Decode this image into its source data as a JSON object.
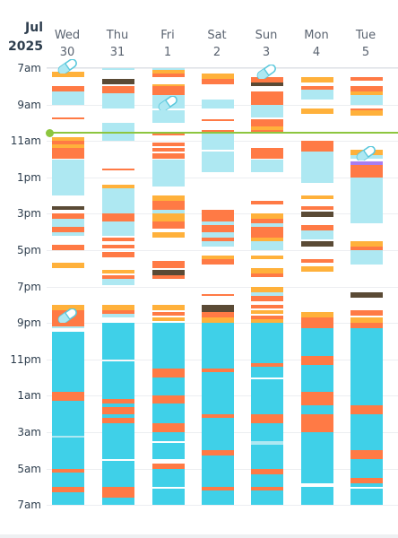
{
  "header": {
    "month": "Jul",
    "year": "2025",
    "days": [
      {
        "weekday": "Wed",
        "date": "30"
      },
      {
        "weekday": "Thu",
        "date": "31"
      },
      {
        "weekday": "Fri",
        "date": "1"
      },
      {
        "weekday": "Sat",
        "date": "2"
      },
      {
        "weekday": "Sun",
        "date": "3"
      },
      {
        "weekday": "Mon",
        "date": "4"
      },
      {
        "weekday": "Tue",
        "date": "5"
      }
    ]
  },
  "time_labels": [
    "7am",
    "9am",
    "11am",
    "1pm",
    "3pm",
    "5pm",
    "7pm",
    "9pm",
    "11pm",
    "1am",
    "3am",
    "5am",
    "7am"
  ],
  "window": {
    "start": "7am",
    "end": "7am next day",
    "hours": 24
  },
  "now_marker": {
    "time": "10:45am",
    "color": "#8dc63f"
  },
  "legend_colors": {
    "deep": "#3fd0e8",
    "light": "#aee8f2",
    "rem": "#ff7a45",
    "awake": "#ffb13b",
    "dark": "#5a4a35",
    "purple": "#a87df0"
  },
  "medication_icon": "capsule-icon",
  "medication_doses": [
    {
      "day": 0,
      "hour": 0.0
    },
    {
      "day": 2,
      "hour": 2.0
    },
    {
      "day": 4,
      "hour": 0.3
    },
    {
      "day": 6,
      "hour": 4.8
    },
    {
      "day": 0,
      "hour": 13.7
    }
  ],
  "columns": [
    [
      [
        "awake",
        0.2,
        0.5
      ],
      [
        "rem",
        1.0,
        1.3
      ],
      [
        "light",
        1.3,
        2.0
      ],
      [
        "rem",
        2.7,
        2.8
      ],
      [
        "awake",
        3.8,
        4.0
      ],
      [
        "rem",
        4.0,
        4.2
      ],
      [
        "awake",
        4.2,
        4.4
      ],
      [
        "rem",
        4.4,
        5.0
      ],
      [
        "light",
        5.0,
        7.0
      ],
      [
        "dark",
        7.6,
        7.8
      ],
      [
        "rem",
        8.0,
        8.3
      ],
      [
        "light",
        8.3,
        8.7
      ],
      [
        "rem",
        8.7,
        9.0
      ],
      [
        "light",
        9.0,
        9.2
      ],
      [
        "rem",
        9.7,
        10.0
      ],
      [
        "awake",
        10.7,
        11.0
      ],
      [
        "awake",
        13.0,
        13.3
      ],
      [
        "rem",
        13.3,
        14.2
      ],
      [
        "light",
        14.2,
        14.3
      ],
      [
        "deep",
        14.5,
        17.8
      ],
      [
        "rem",
        17.8,
        18.3
      ],
      [
        "deep",
        18.3,
        20.2
      ],
      [
        "light",
        20.2,
        20.3
      ],
      [
        "deep",
        20.3,
        22.0
      ],
      [
        "rem",
        22.0,
        22.2
      ],
      [
        "deep",
        22.2,
        23.0
      ],
      [
        "rem",
        23.0,
        23.3
      ],
      [
        "deep",
        23.3,
        24.0
      ]
    ],
    [
      [
        "light",
        0.0,
        0.1
      ],
      [
        "dark",
        0.6,
        0.9
      ],
      [
        "rem",
        1.0,
        1.4
      ],
      [
        "light",
        1.4,
        2.2
      ],
      [
        "light",
        3.0,
        4.0
      ],
      [
        "rem",
        5.5,
        5.6
      ],
      [
        "awake",
        6.4,
        6.6
      ],
      [
        "light",
        6.6,
        7.0
      ],
      [
        "light",
        7.0,
        8.0
      ],
      [
        "rem",
        8.0,
        8.4
      ],
      [
        "light",
        8.4,
        9.2
      ],
      [
        "rem",
        9.3,
        9.5
      ],
      [
        "rem",
        9.7,
        9.9
      ],
      [
        "rem",
        10.1,
        10.4
      ],
      [
        "awake",
        11.1,
        11.3
      ],
      [
        "rem",
        11.4,
        11.6
      ],
      [
        "light",
        11.6,
        11.9
      ],
      [
        "awake",
        13.0,
        13.3
      ],
      [
        "rem",
        13.3,
        13.5
      ],
      [
        "light",
        13.5,
        13.7
      ],
      [
        "deep",
        14.0,
        16.0
      ],
      [
        "deep",
        16.1,
        18.2
      ],
      [
        "rem",
        18.2,
        18.4
      ],
      [
        "deep",
        18.4,
        18.6
      ],
      [
        "rem",
        18.6,
        19.0
      ],
      [
        "deep",
        19.0,
        19.2
      ],
      [
        "rem",
        19.2,
        19.5
      ],
      [
        "deep",
        19.5,
        21.5
      ],
      [
        "deep",
        21.6,
        23.0
      ],
      [
        "rem",
        23.0,
        23.6
      ],
      [
        "deep",
        23.6,
        24.0
      ]
    ],
    [
      [
        "light",
        0.0,
        0.1
      ],
      [
        "awake",
        0.1,
        0.3
      ],
      [
        "rem",
        0.3,
        0.5
      ],
      [
        "awake",
        0.9,
        1.0
      ],
      [
        "rem",
        1.0,
        1.5
      ],
      [
        "light",
        1.5,
        2.2
      ],
      [
        "light",
        2.3,
        3.0
      ],
      [
        "rem",
        3.6,
        3.7
      ],
      [
        "rem",
        4.1,
        4.3
      ],
      [
        "rem",
        4.4,
        4.6
      ],
      [
        "rem",
        4.7,
        5.0
      ],
      [
        "light",
        5.0,
        6.5
      ],
      [
        "awake",
        7.0,
        7.3
      ],
      [
        "rem",
        7.3,
        7.8
      ],
      [
        "light",
        7.8,
        8.0
      ],
      [
        "awake",
        8.0,
        8.4
      ],
      [
        "rem",
        8.4,
        8.8
      ],
      [
        "awake",
        9.0,
        9.3
      ],
      [
        "rem",
        10.6,
        11.0
      ],
      [
        "dark",
        11.1,
        11.4
      ],
      [
        "rem",
        11.4,
        11.6
      ],
      [
        "awake",
        13.0,
        13.3
      ],
      [
        "rem",
        13.4,
        13.6
      ],
      [
        "awake",
        13.7,
        13.9
      ],
      [
        "deep",
        14.0,
        16.5
      ],
      [
        "rem",
        16.5,
        17.0
      ],
      [
        "deep",
        17.0,
        18.0
      ],
      [
        "rem",
        18.0,
        18.4
      ],
      [
        "deep",
        18.4,
        19.5
      ],
      [
        "rem",
        19.5,
        20.0
      ],
      [
        "deep",
        20.0,
        20.5
      ],
      [
        "deep",
        20.6,
        21.5
      ],
      [
        "rem",
        21.7,
        22.0
      ],
      [
        "deep",
        22.0,
        23.0
      ],
      [
        "deep",
        23.1,
        24.0
      ]
    ],
    [
      [
        "awake",
        0.3,
        0.6
      ],
      [
        "rem",
        0.6,
        0.9
      ],
      [
        "light",
        1.7,
        2.2
      ],
      [
        "rem",
        2.8,
        2.9
      ],
      [
        "rem",
        3.4,
        3.6
      ],
      [
        "light",
        3.6,
        4.5
      ],
      [
        "light",
        4.6,
        5.7
      ],
      [
        "rem",
        7.8,
        8.0
      ],
      [
        "rem",
        8.0,
        8.4
      ],
      [
        "light",
        8.4,
        8.6
      ],
      [
        "rem",
        8.6,
        9.0
      ],
      [
        "light",
        9.0,
        9.3
      ],
      [
        "rem",
        9.3,
        9.5
      ],
      [
        "light",
        9.5,
        9.8
      ],
      [
        "awake",
        10.3,
        10.5
      ],
      [
        "rem",
        10.5,
        10.8
      ],
      [
        "rem",
        12.4,
        12.5
      ],
      [
        "dark",
        13.0,
        13.4
      ],
      [
        "rem",
        13.4,
        13.7
      ],
      [
        "awake",
        13.7,
        14.0
      ],
      [
        "deep",
        14.0,
        16.5
      ],
      [
        "rem",
        16.5,
        16.7
      ],
      [
        "deep",
        16.7,
        19.0
      ],
      [
        "rem",
        19.0,
        19.2
      ],
      [
        "deep",
        19.2,
        21.0
      ],
      [
        "rem",
        21.0,
        21.3
      ],
      [
        "deep",
        21.3,
        23.0
      ],
      [
        "rem",
        23.0,
        23.2
      ],
      [
        "deep",
        23.2,
        24.0
      ]
    ],
    [
      [
        "rem",
        0.5,
        1.0
      ],
      [
        "dark",
        0.8,
        1.0
      ],
      [
        "rem",
        1.3,
        1.5
      ],
      [
        "rem",
        1.5,
        2.0
      ],
      [
        "light",
        2.0,
        2.7
      ],
      [
        "rem",
        2.8,
        3.2
      ],
      [
        "awake",
        3.2,
        3.4
      ],
      [
        "rem",
        3.4,
        3.6
      ],
      [
        "rem",
        4.4,
        5.0
      ],
      [
        "light",
        5.0,
        5.7
      ],
      [
        "rem",
        7.3,
        7.5
      ],
      [
        "awake",
        8.0,
        8.3
      ],
      [
        "rem",
        8.3,
        8.5
      ],
      [
        "light",
        8.5,
        8.7
      ],
      [
        "rem",
        8.7,
        9.3
      ],
      [
        "awake",
        9.3,
        9.5
      ],
      [
        "light",
        9.5,
        10.0
      ],
      [
        "awake",
        10.3,
        10.5
      ],
      [
        "awake",
        11.0,
        11.3
      ],
      [
        "rem",
        11.3,
        11.5
      ],
      [
        "awake",
        12.0,
        12.3
      ],
      [
        "light",
        12.3,
        12.5
      ],
      [
        "rem",
        12.5,
        12.8
      ],
      [
        "rem",
        13.0,
        13.2
      ],
      [
        "awake",
        13.3,
        13.5
      ],
      [
        "rem",
        13.6,
        13.8
      ],
      [
        "awake",
        13.8,
        14.0
      ],
      [
        "deep",
        14.0,
        16.2
      ],
      [
        "rem",
        16.2,
        16.4
      ],
      [
        "deep",
        16.4,
        17.0
      ],
      [
        "deep",
        17.1,
        19.0
      ],
      [
        "rem",
        19.0,
        19.5
      ],
      [
        "deep",
        19.5,
        20.5
      ],
      [
        "light",
        20.5,
        20.7
      ],
      [
        "deep",
        20.7,
        22.0
      ],
      [
        "rem",
        22.0,
        22.3
      ],
      [
        "deep",
        22.3,
        23.0
      ],
      [
        "rem",
        23.0,
        23.2
      ],
      [
        "deep",
        23.2,
        24.0
      ]
    ],
    [
      [
        "awake",
        0.5,
        0.8
      ],
      [
        "rem",
        1.0,
        1.2
      ],
      [
        "light",
        1.2,
        1.7
      ],
      [
        "awake",
        2.2,
        2.5
      ],
      [
        "rem",
        4.0,
        4.6
      ],
      [
        "light",
        4.6,
        6.3
      ],
      [
        "awake",
        7.0,
        7.2
      ],
      [
        "rem",
        7.6,
        7.8
      ],
      [
        "dark",
        7.9,
        8.2
      ],
      [
        "rem",
        8.6,
        8.9
      ],
      [
        "light",
        8.9,
        9.4
      ],
      [
        "dark",
        9.5,
        9.8
      ],
      [
        "rem",
        10.5,
        10.7
      ],
      [
        "awake",
        10.9,
        11.2
      ],
      [
        "awake",
        13.4,
        13.7
      ],
      [
        "rem",
        13.7,
        14.0
      ],
      [
        "rem",
        14.0,
        14.3
      ],
      [
        "deep",
        14.3,
        15.8
      ],
      [
        "rem",
        15.8,
        16.3
      ],
      [
        "deep",
        16.3,
        17.8
      ],
      [
        "rem",
        17.8,
        18.5
      ],
      [
        "deep",
        18.5,
        19.0
      ],
      [
        "rem",
        19.0,
        20.0
      ],
      [
        "deep",
        20.0,
        22.8
      ],
      [
        "deep",
        23.0,
        24.0
      ]
    ],
    [
      [
        "rem",
        0.5,
        0.7
      ],
      [
        "rem",
        1.0,
        1.3
      ],
      [
        "awake",
        1.3,
        1.5
      ],
      [
        "light",
        1.5,
        2.0
      ],
      [
        "rem",
        2.2,
        2.3
      ],
      [
        "awake",
        2.3,
        2.6
      ],
      [
        "awake",
        4.5,
        4.8
      ],
      [
        "light",
        4.8,
        5.0
      ],
      [
        "purple",
        5.1,
        5.3
      ],
      [
        "rem",
        5.3,
        6.0
      ],
      [
        "light",
        6.0,
        8.0
      ],
      [
        "light",
        8.0,
        8.5
      ],
      [
        "awake",
        9.5,
        9.8
      ],
      [
        "rem",
        9.8,
        10.0
      ],
      [
        "light",
        10.0,
        10.8
      ],
      [
        "dark",
        12.3,
        12.6
      ],
      [
        "rem",
        13.3,
        13.6
      ],
      [
        "awake",
        13.7,
        14.0
      ],
      [
        "rem",
        14.0,
        14.3
      ],
      [
        "deep",
        14.3,
        18.5
      ],
      [
        "rem",
        18.5,
        19.0
      ],
      [
        "deep",
        19.0,
        21.0
      ],
      [
        "rem",
        21.0,
        21.5
      ],
      [
        "deep",
        21.5,
        22.5
      ],
      [
        "rem",
        22.5,
        22.8
      ],
      [
        "deep",
        22.8,
        23.0
      ],
      [
        "deep",
        23.1,
        24.0
      ]
    ]
  ]
}
